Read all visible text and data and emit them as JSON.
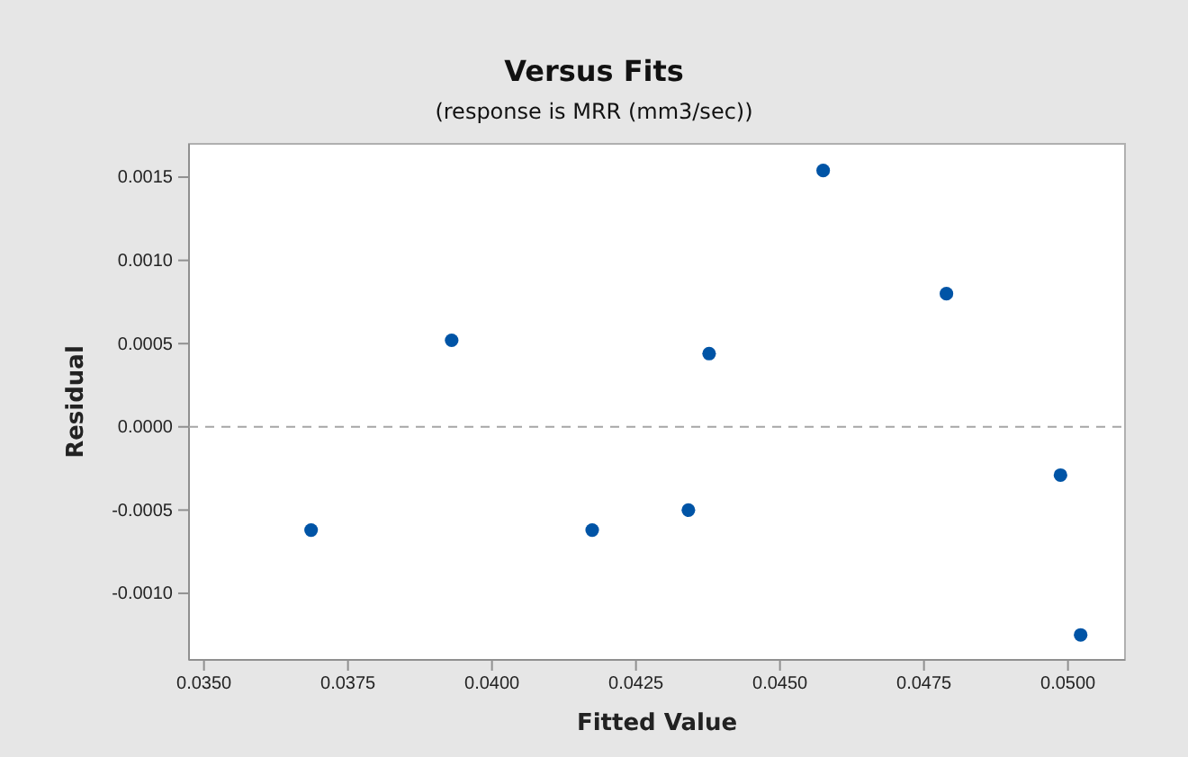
{
  "chart_data": {
    "type": "scatter",
    "title": "Versus Fits",
    "subtitle": "(response is MRR (mm3/sec))",
    "xlabel": "Fitted Value",
    "ylabel": "Residual",
    "x": [
      0.03686,
      0.0393,
      0.04174,
      0.04341,
      0.04377,
      0.04575,
      0.04789,
      0.04987,
      0.05022
    ],
    "series": [
      {
        "color": "#0054a6",
        "values": [
          -0.00062,
          0.00052,
          -0.00062,
          -0.0005,
          0.00044,
          0.00154,
          0.0008,
          -0.00029,
          -0.00125
        ]
      }
    ],
    "marker": "circle",
    "xlim": [
      0.03474,
      0.05099
    ],
    "xticks": [
      {
        "value": 0.035,
        "label": "0.0350"
      },
      {
        "value": 0.0375,
        "label": "0.0375"
      },
      {
        "value": 0.04,
        "label": "0.0400"
      },
      {
        "value": 0.0425,
        "label": "0.0425"
      },
      {
        "value": 0.045,
        "label": "0.0450"
      },
      {
        "value": 0.0475,
        "label": "0.0475"
      },
      {
        "value": 0.05,
        "label": "0.0500"
      }
    ],
    "ylim": [
      -0.0014,
      0.0017
    ],
    "yticks": [
      {
        "value": -0.001,
        "label": "-0.0010"
      },
      {
        "value": -0.0005,
        "label": "-0.0005"
      },
      {
        "value": 0,
        "label": "0.0000"
      },
      {
        "value": 0.0005,
        "label": "0.0005"
      },
      {
        "value": 0.001,
        "label": "0.0010"
      },
      {
        "value": 0.0015,
        "label": "0.0015"
      }
    ],
    "ref_lines": [
      {
        "axis": "y",
        "value": 0,
        "color": "#a6a6a6",
        "line_style": "dashed"
      }
    ],
    "tick_labels": "xy"
  }
}
